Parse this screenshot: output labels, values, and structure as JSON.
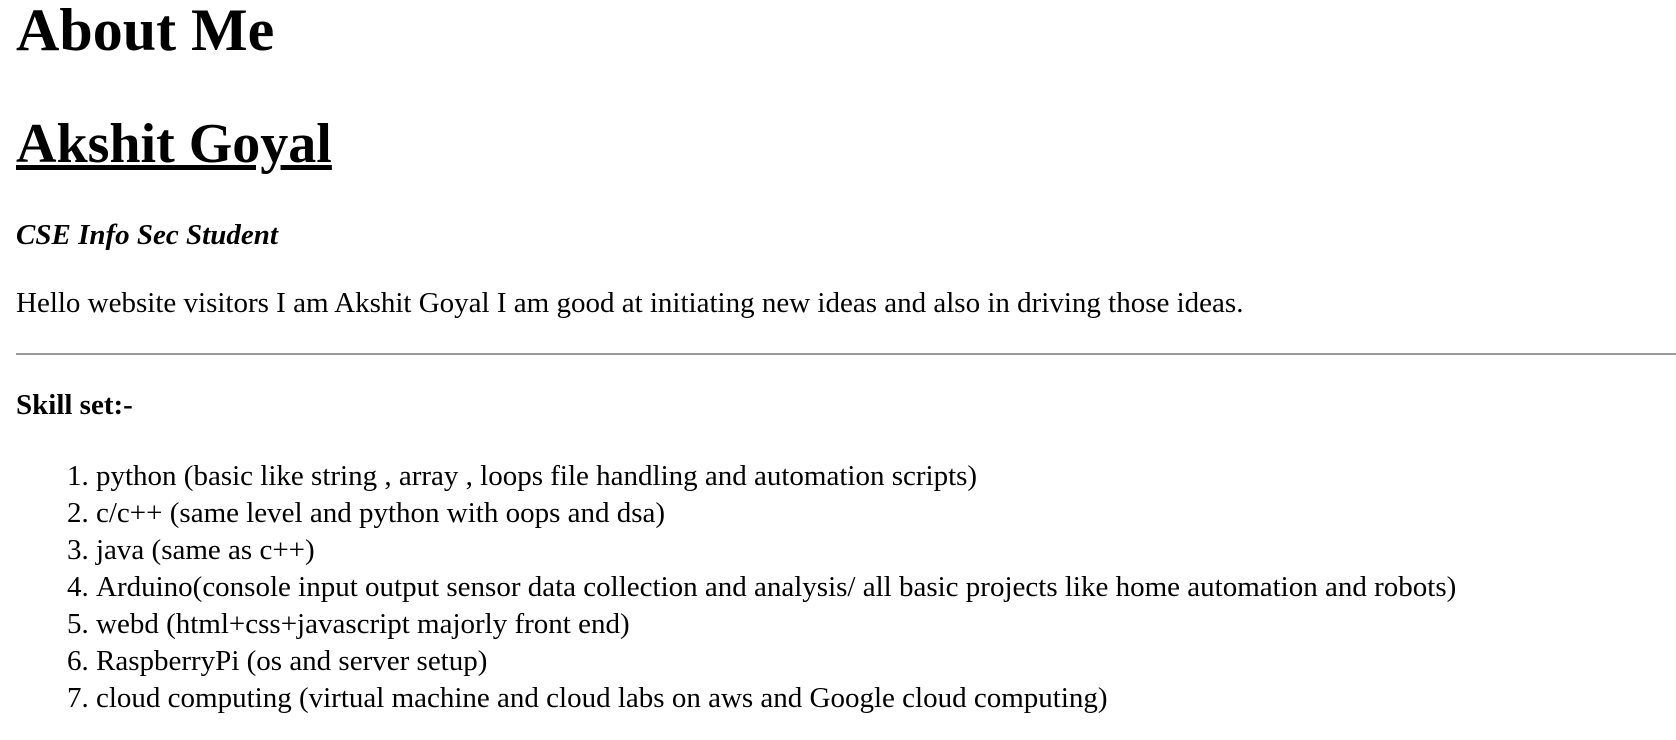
{
  "page": {
    "title": "About Me",
    "name": "Akshit Goyal",
    "role": "CSE Info Sec Student",
    "intro": "Hello website visitors I am Akshit Goyal I am good at initiating new ideas and also in driving those ideas."
  },
  "skills": {
    "heading": "Skill set:-",
    "items": [
      "python (basic like string , array , loops file handling and automation scripts)",
      "c/c++ (same level and python with oops and dsa)",
      "java (same as c++)",
      "Arduino(console input output sensor data collection and analysis/ all basic projects like home automation and robots)",
      "webd (html+css+javascript majorly front end)",
      "RaspberryPi (os and server setup)",
      "cloud computing (virtual machine and cloud labs on aws and Google cloud computing)"
    ]
  }
}
